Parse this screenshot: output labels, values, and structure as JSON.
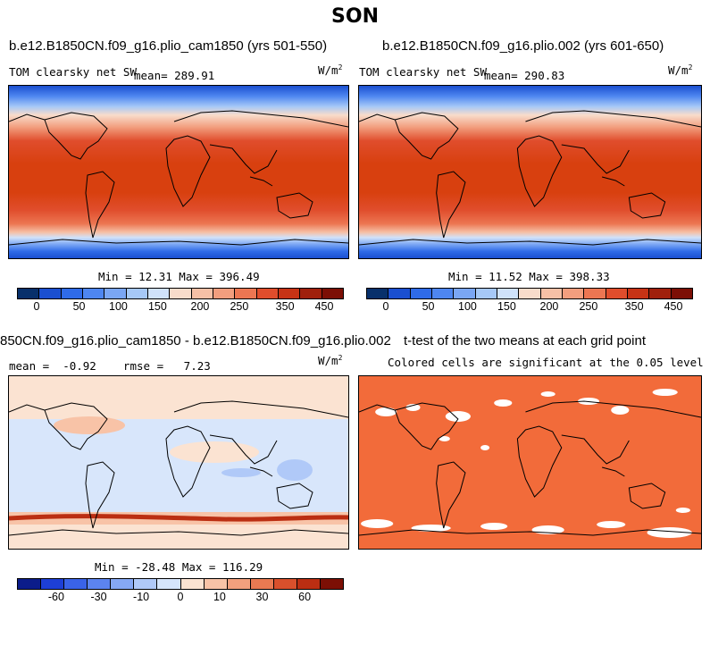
{
  "page_title": "SON",
  "panels": [
    {
      "title": "b.e12.B1850CN.f09_g16.plio_cam1850 (yrs 501-550)",
      "variable": "TOM clearsky net SW",
      "mean_label": "mean= 289.91",
      "units": "W/m",
      "units_exp": "2",
      "minmax": "Min =  12.31 Max = 396.49"
    },
    {
      "title": "b.e12.B1850CN.f09_g16.plio.002 (yrs 601-650)",
      "variable": "TOM clearsky net SW",
      "mean_label": "mean= 290.83",
      "units": "W/m",
      "units_exp": "2",
      "minmax": "Min =  11.52 Max = 398.33"
    },
    {
      "title": "850CN.f09_g16.plio_cam1850 - b.e12.B1850CN.f09_g16.plio.002",
      "stats_label": "mean =  -0.92    rmse =   7.23",
      "units": "W/m",
      "units_exp": "2",
      "minmax": "Min = -28.48 Max = 116.29"
    },
    {
      "title": "t-test of the two means at each grid point",
      "subtitle": "Colored cells are significant at the 0.05 level"
    }
  ],
  "colorbars": {
    "abs": {
      "colors": [
        "#08306b",
        "#1a4fd0",
        "#2f6be8",
        "#4e86f0",
        "#7aa6f4",
        "#a6c8f7",
        "#d0e2fa",
        "#f8dccb",
        "#f6c0a6",
        "#f29e7e",
        "#ec7652",
        "#e04d2c",
        "#c73315",
        "#a0200c",
        "#7c0f05"
      ],
      "tick_labels": [
        "0",
        "50",
        "100",
        "150",
        "200",
        "250",
        "350",
        "450"
      ]
    },
    "diff": {
      "colors": [
        "#0b1c8a",
        "#1d3fd6",
        "#3a63e8",
        "#5c84ef",
        "#86a8f4",
        "#b0c9f8",
        "#d6e5fb",
        "#fbe3d2",
        "#f8c3a7",
        "#f2a07e",
        "#e97a52",
        "#d9502c",
        "#bb2e12",
        "#7c0f05"
      ],
      "tick_labels": [
        "-60",
        "-30",
        "-10",
        "0",
        "10",
        "30",
        "60"
      ]
    }
  },
  "colors": {
    "significant_cell": "#f26b3a",
    "ocean_diff": "#d8e6fb"
  }
}
